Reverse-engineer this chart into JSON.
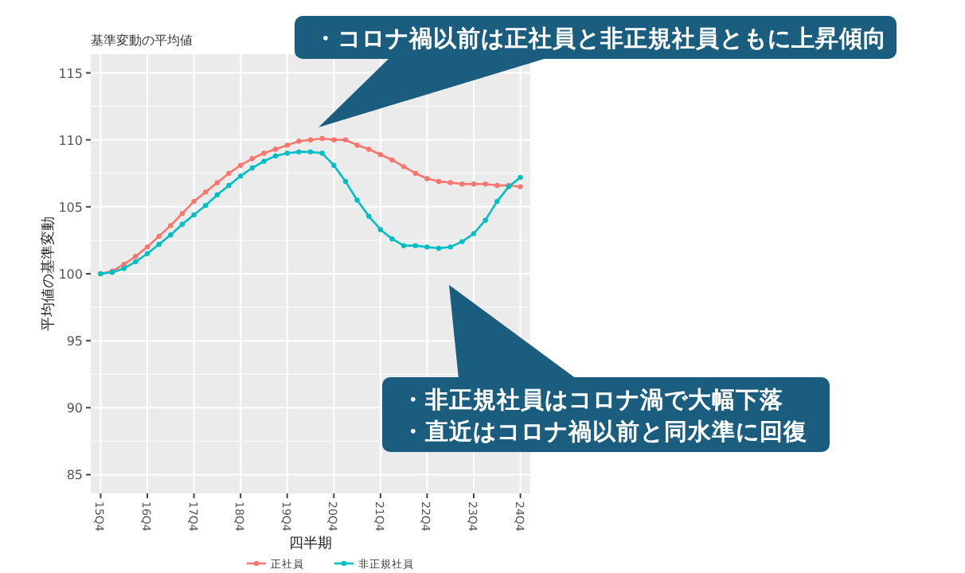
{
  "chart_data": {
    "type": "line",
    "title": "基準変動の平均値",
    "xlabel": "四半期",
    "ylabel": "平均値の基準変動",
    "categories": [
      "15Q4",
      null,
      null,
      null,
      "16Q4",
      null,
      null,
      null,
      "17Q4",
      null,
      null,
      null,
      "18Q4",
      null,
      null,
      null,
      "19Q4",
      null,
      null,
      null,
      "20Q4",
      null,
      null,
      null,
      "21Q4",
      null,
      null,
      null,
      "22Q4",
      null,
      null,
      null,
      "23Q4",
      null,
      null,
      null,
      "24Q4"
    ],
    "series": [
      {
        "name": "正社員",
        "color": "#f8766d",
        "values": [
          100,
          100.2,
          100.7,
          101.3,
          102.0,
          102.8,
          103.6,
          104.5,
          105.4,
          106.1,
          106.8,
          107.5,
          108.1,
          108.6,
          109.0,
          109.3,
          109.6,
          109.9,
          110.0,
          110.1,
          110.0,
          110.0,
          109.6,
          109.3,
          108.9,
          108.5,
          108.0,
          107.5,
          107.1,
          106.9,
          106.8,
          106.7,
          106.7,
          106.7,
          106.6,
          106.6,
          106.5
        ]
      },
      {
        "name": "非正規社員",
        "color": "#00bfc4",
        "values": [
          100,
          100.1,
          100.4,
          100.9,
          101.5,
          102.2,
          102.9,
          103.7,
          104.4,
          105.1,
          105.9,
          106.6,
          107.3,
          107.9,
          108.4,
          108.8,
          109.0,
          109.1,
          109.1,
          109.0,
          108.1,
          106.9,
          105.5,
          104.3,
          103.3,
          102.6,
          102.1,
          102.1,
          102.0,
          101.9,
          102.0,
          102.4,
          103.0,
          104.0,
          105.4,
          106.5,
          107.2
        ]
      }
    ],
    "ylim": [
      83.6,
      116.4
    ],
    "yticks": [
      85,
      90,
      95,
      100,
      105,
      110,
      115
    ],
    "grid": true,
    "legend": "bottom",
    "marker": "circle",
    "line_style": "solid",
    "annotations": [
      "・コロナ禍以前は正社員と非正規社員ともに上昇傾向",
      "・非正規社員はコロナ渦で大幅下落",
      "・直近はコロナ禍以前と同水準に回復"
    ]
  }
}
